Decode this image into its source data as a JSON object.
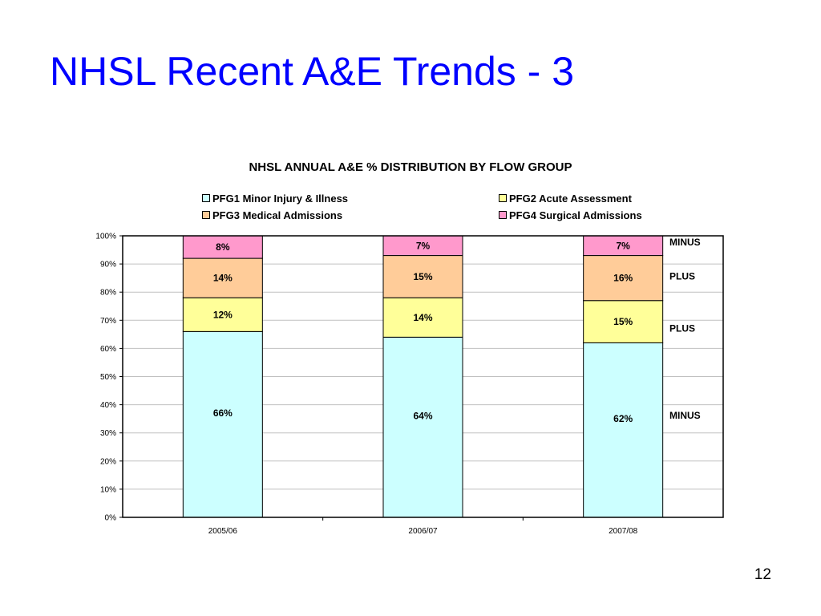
{
  "slide": {
    "title": "NHSL Recent A&E Trends - 3",
    "page_number": "12"
  },
  "chart_data": {
    "type": "bar",
    "stacked": true,
    "title": "NHSL ANNUAL A&E % DISTRIBUTION BY FLOW GROUP",
    "xlabel": "",
    "ylabel": "",
    "ylim": [
      0,
      100
    ],
    "y_ticks": [
      "0%",
      "10%",
      "20%",
      "30%",
      "40%",
      "50%",
      "60%",
      "70%",
      "80%",
      "90%",
      "100%"
    ],
    "grid": true,
    "legend_position": "top",
    "categories": [
      "2005/06",
      "2006/07",
      "2007/08"
    ],
    "series": [
      {
        "name": "PFG1 Minor Injury & Illness",
        "color": "#ccffff",
        "values": [
          66,
          64,
          62
        ],
        "labels": [
          "66%",
          "64%",
          "62%"
        ]
      },
      {
        "name": "PFG2 Acute Assessment",
        "color": "#ffff99",
        "values": [
          12,
          14,
          15
        ],
        "labels": [
          "12%",
          "14%",
          "15%"
        ]
      },
      {
        "name": "PFG3 Medical Admissions",
        "color": "#ffcc99",
        "values": [
          14,
          15,
          16
        ],
        "labels": [
          "14%",
          "15%",
          "16%"
        ]
      },
      {
        "name": "PFG4 Surgical Admissions",
        "color": "#ff99cc",
        "values": [
          8,
          7,
          7
        ],
        "labels": [
          "8%",
          "7%",
          "7%"
        ]
      }
    ],
    "annotations": [
      {
        "text": "MINUS",
        "series": "PFG4 Surgical Admissions"
      },
      {
        "text": "PLUS",
        "series": "PFG3 Medical Admissions"
      },
      {
        "text": "PLUS",
        "series": "PFG2 Acute Assessment"
      },
      {
        "text": "MINUS",
        "series": "PFG1 Minor Injury & Illness"
      }
    ]
  }
}
